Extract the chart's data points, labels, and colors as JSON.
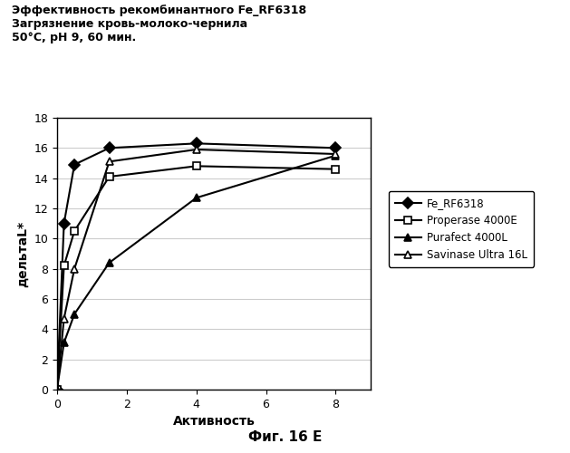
{
  "title_lines": [
    "Эффективность рекомбинантного Fe_RF6318",
    "Загрязнение кровь-молоко-чернила",
    "50°C, pH 9, 60 мин."
  ],
  "xlabel": "Активность",
  "ylabel": "дельтаL*",
  "caption": "Фиг. 16 E",
  "xlim": [
    0,
    9
  ],
  "ylim": [
    0,
    18
  ],
  "xticks": [
    0,
    2,
    4,
    6,
    8
  ],
  "yticks": [
    0,
    2,
    4,
    6,
    8,
    10,
    12,
    14,
    16,
    18
  ],
  "series": [
    {
      "label": "Fe_RF6318",
      "x": [
        0,
        0.2,
        0.5,
        1.5,
        4,
        8
      ],
      "y": [
        0,
        11,
        14.9,
        16.0,
        16.3,
        16.0
      ],
      "marker": "D",
      "color": "#000000",
      "markerfacecolor": "#000000"
    },
    {
      "label": "Properase 4000E",
      "x": [
        0,
        0.2,
        0.5,
        1.5,
        4,
        8
      ],
      "y": [
        0,
        8.2,
        10.5,
        14.1,
        14.8,
        14.6
      ],
      "marker": "s",
      "color": "#000000",
      "markerfacecolor": "#ffffff"
    },
    {
      "label": "Purafect 4000L",
      "x": [
        0,
        0.2,
        0.5,
        1.5,
        4,
        8
      ],
      "y": [
        0,
        3.1,
        5.0,
        8.4,
        12.7,
        15.5
      ],
      "marker": "^",
      "color": "#000000",
      "markerfacecolor": "#000000"
    },
    {
      "label": "Savinase Ultra 16L",
      "x": [
        0,
        0.2,
        0.5,
        1.5,
        4,
        8
      ],
      "y": [
        0,
        4.7,
        8.0,
        15.1,
        15.9,
        15.6
      ],
      "marker": "^",
      "color": "#000000",
      "markerfacecolor": "#ffffff"
    }
  ],
  "background_color": "#ffffff",
  "grid_color": "#cccccc",
  "title_fontsize": 9,
  "axis_fontsize": 10,
  "legend_fontsize": 8.5,
  "caption_fontsize": 11
}
